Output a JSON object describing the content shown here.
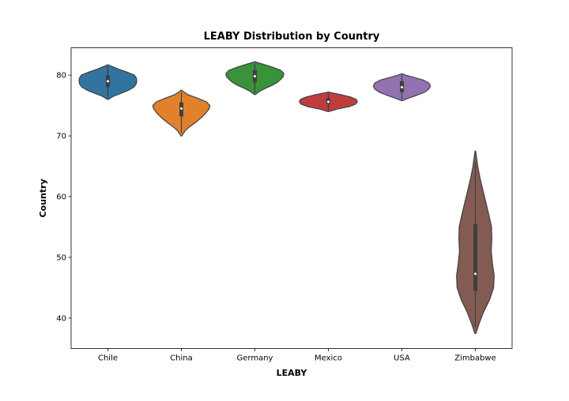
{
  "chart_data": {
    "type": "violin",
    "title": "LEABY Distribution by Country",
    "xlabel": "LEABY",
    "ylabel": "Country",
    "categories": [
      "Chile",
      "China",
      "Germany",
      "Mexico",
      "USA",
      "Zimbabwe"
    ],
    "ylim": [
      35.0,
      84.5
    ],
    "yticks": [
      40,
      50,
      60,
      70,
      80
    ],
    "grid": false,
    "legend": "none",
    "series": [
      {
        "category": "Chile",
        "color": "#3274a1",
        "min": 76.0,
        "max": 81.7,
        "q1": 78.0,
        "median": 79.0,
        "q3": 80.0,
        "profile": [
          [
            76.0,
            0.02
          ],
          [
            76.5,
            0.18
          ],
          [
            77.0,
            0.45
          ],
          [
            77.5,
            0.7
          ],
          [
            78.0,
            0.88
          ],
          [
            78.5,
            0.96
          ],
          [
            79.0,
            0.98
          ],
          [
            79.5,
            0.97
          ],
          [
            80.0,
            0.9
          ],
          [
            80.5,
            0.65
          ],
          [
            81.0,
            0.35
          ],
          [
            81.5,
            0.1
          ],
          [
            81.7,
            0.02
          ]
        ]
      },
      {
        "category": "China",
        "color": "#e1812c",
        "min": 70.0,
        "max": 77.5,
        "q1": 73.2,
        "median": 74.5,
        "q3": 75.5,
        "profile": [
          [
            70.0,
            0.02
          ],
          [
            70.8,
            0.12
          ],
          [
            71.5,
            0.28
          ],
          [
            72.2,
            0.48
          ],
          [
            73.0,
            0.68
          ],
          [
            73.8,
            0.84
          ],
          [
            74.5,
            0.95
          ],
          [
            75.0,
            0.97
          ],
          [
            75.6,
            0.85
          ],
          [
            76.2,
            0.55
          ],
          [
            76.8,
            0.22
          ],
          [
            77.3,
            0.06
          ],
          [
            77.5,
            0.02
          ]
        ]
      },
      {
        "category": "Germany",
        "color": "#3a923a",
        "min": 76.8,
        "max": 82.2,
        "q1": 78.8,
        "median": 79.8,
        "q3": 80.8,
        "profile": [
          [
            76.8,
            0.02
          ],
          [
            77.3,
            0.15
          ],
          [
            77.8,
            0.35
          ],
          [
            78.3,
            0.58
          ],
          [
            78.8,
            0.76
          ],
          [
            79.3,
            0.88
          ],
          [
            79.8,
            0.97
          ],
          [
            80.3,
            0.98
          ],
          [
            80.8,
            0.88
          ],
          [
            81.3,
            0.6
          ],
          [
            81.8,
            0.28
          ],
          [
            82.1,
            0.07
          ],
          [
            82.2,
            0.02
          ]
        ]
      },
      {
        "category": "Mexico",
        "color": "#c03d3e",
        "min": 74.0,
        "max": 77.2,
        "q1": 75.2,
        "median": 75.6,
        "q3": 76.2,
        "profile": [
          [
            74.0,
            0.02
          ],
          [
            74.4,
            0.3
          ],
          [
            74.8,
            0.7
          ],
          [
            75.2,
            0.92
          ],
          [
            75.6,
            0.99
          ],
          [
            76.0,
            0.95
          ],
          [
            76.4,
            0.75
          ],
          [
            76.8,
            0.42
          ],
          [
            77.1,
            0.1
          ],
          [
            77.2,
            0.02
          ]
        ]
      },
      {
        "category": "USA",
        "color": "#9372b2",
        "min": 75.8,
        "max": 80.2,
        "q1": 77.2,
        "median": 78.0,
        "q3": 79.0,
        "profile": [
          [
            75.8,
            0.02
          ],
          [
            76.2,
            0.22
          ],
          [
            76.7,
            0.52
          ],
          [
            77.2,
            0.78
          ],
          [
            77.7,
            0.92
          ],
          [
            78.2,
            0.97
          ],
          [
            78.7,
            0.92
          ],
          [
            79.2,
            0.72
          ],
          [
            79.6,
            0.42
          ],
          [
            80.0,
            0.12
          ],
          [
            80.2,
            0.02
          ]
        ]
      },
      {
        "category": "Zimbabwe",
        "color": "#845b53",
        "min": 37.5,
        "max": 67.5,
        "q1": 44.5,
        "median": 47.3,
        "q3": 55.5,
        "profile": [
          [
            37.5,
            0.02
          ],
          [
            39.0,
            0.12
          ],
          [
            41.0,
            0.28
          ],
          [
            43.0,
            0.48
          ],
          [
            45.0,
            0.62
          ],
          [
            47.0,
            0.64
          ],
          [
            49.0,
            0.58
          ],
          [
            51.0,
            0.54
          ],
          [
            53.0,
            0.56
          ],
          [
            55.0,
            0.55
          ],
          [
            57.0,
            0.46
          ],
          [
            59.0,
            0.36
          ],
          [
            61.0,
            0.26
          ],
          [
            63.0,
            0.16
          ],
          [
            65.0,
            0.08
          ],
          [
            67.5,
            0.01
          ]
        ]
      }
    ]
  }
}
